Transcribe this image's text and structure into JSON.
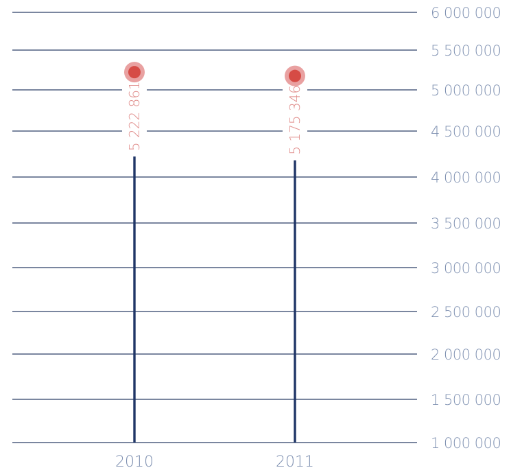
{
  "chart_data": {
    "type": "lollipop",
    "title": "",
    "xlabel": "",
    "ylabel": "",
    "ylim": [
      1000000,
      6000000
    ],
    "yticks": [
      1000000,
      1500000,
      2000000,
      2500000,
      3000000,
      3500000,
      4000000,
      4500000,
      5000000,
      5500000,
      6000000
    ],
    "ytick_labels": [
      "1 000 000",
      "1 500 000",
      "2 000 000",
      "2 500 000",
      "3 000 000",
      "3 500 000",
      "4 000 000",
      "4 500 000",
      "5 000 000",
      "5 500 000",
      "6 000 000"
    ],
    "categories": [
      "2010",
      "2011"
    ],
    "values": [
      5222861,
      5175346
    ],
    "value_labels": [
      "5 222 861",
      "5 175 346"
    ],
    "grid": true,
    "colors": {
      "grid": "#2a3d66",
      "stem": "#1f3566",
      "marker": "#d64b45",
      "marker_halo": "#e9a1a1",
      "value_label": "#e08d8b",
      "tick_label": "#7d8fb0"
    }
  }
}
